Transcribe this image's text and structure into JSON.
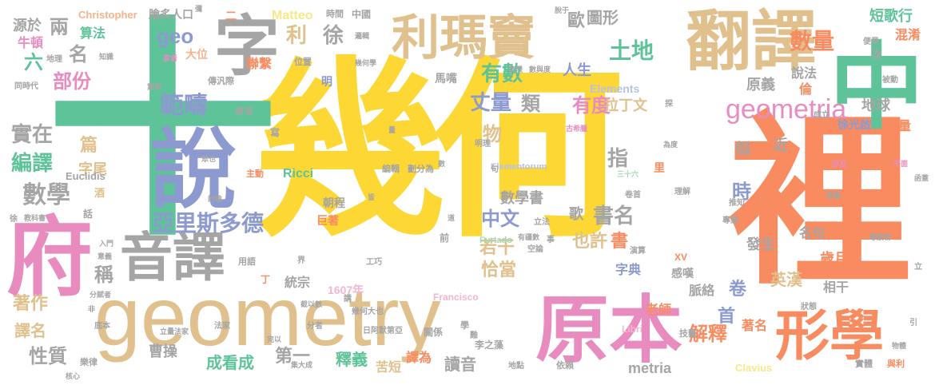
{
  "palette": {
    "yellow": "#fdd835",
    "green": "#5fc39a",
    "orange": "#f98b60",
    "tan": "#e0c08c",
    "pink": "#e88cc0",
    "blue": "#8c9ad0",
    "gray": "#a5a5a5",
    "lightyellow": "#f7e98a",
    "lightpink": "#f1b6d0",
    "lightblue": "#b7c2e3",
    "lightgreen": "#a5d8b5",
    "lightorange": "#f4b38b"
  },
  "words": [
    {
      "text": "幾何",
      "color": "yellow"
    },
    {
      "text": "十",
      "color": "green"
    },
    {
      "text": "裡",
      "color": "orange"
    },
    {
      "text": "geometry",
      "color": "tan"
    },
    {
      "text": "中",
      "color": "green"
    },
    {
      "text": "說",
      "color": "blue"
    },
    {
      "text": "府",
      "color": "pink"
    },
    {
      "text": "原本",
      "color": "pink"
    },
    {
      "text": "字",
      "color": "gray"
    },
    {
      "text": "利瑪竇",
      "color": "tan"
    },
    {
      "text": "翻譯",
      "color": "tan"
    },
    {
      "text": "音譯",
      "color": "gray"
    },
    {
      "text": "形學",
      "color": "orange"
    },
    {
      "text": "geometria",
      "color": "pink"
    },
    {
      "text": "亞里斯多德",
      "color": "blue"
    },
    {
      "text": "數學",
      "color": "gray"
    },
    {
      "text": "範疇",
      "color": "blue"
    },
    {
      "text": "數量",
      "color": "orange"
    },
    {
      "text": "有數",
      "color": "green"
    },
    {
      "text": "土地",
      "color": "green"
    },
    {
      "text": "丈量",
      "color": "blue"
    },
    {
      "text": "有度",
      "color": "pink"
    },
    {
      "text": "書名",
      "color": "gray"
    },
    {
      "text": "中文",
      "color": "blue"
    },
    {
      "text": "部份",
      "color": "pink"
    },
    {
      "text": "實在",
      "color": "gray"
    },
    {
      "text": "編譯",
      "color": "green"
    },
    {
      "text": "geo",
      "color": "blue"
    },
    {
      "text": "利",
      "color": "tan"
    },
    {
      "text": "徐",
      "color": "gray"
    },
    {
      "text": "名",
      "color": "gray"
    },
    {
      "text": "兩",
      "color": "gray"
    },
    {
      "text": "六",
      "color": "green"
    },
    {
      "text": "人生",
      "color": "blue"
    },
    {
      "text": "拉丁文",
      "color": "tan"
    },
    {
      "text": "類",
      "color": "gray"
    },
    {
      "text": "物",
      "color": "tan"
    },
    {
      "text": "指",
      "color": "gray"
    },
    {
      "text": "時",
      "color": "blue"
    },
    {
      "text": "若干",
      "color": "tan"
    },
    {
      "text": "恰當",
      "color": "tan"
    },
    {
      "text": "也許",
      "color": "tan"
    },
    {
      "text": "書",
      "color": "orange"
    },
    {
      "text": "數學書",
      "color": "gray"
    },
    {
      "text": "字典",
      "color": "blue"
    },
    {
      "text": "首",
      "color": "blue"
    },
    {
      "text": "解釋",
      "color": "orange"
    },
    {
      "text": "卷",
      "color": "blue"
    },
    {
      "text": "著作",
      "color": "tan"
    },
    {
      "text": "譯名",
      "color": "tan"
    },
    {
      "text": "性質",
      "color": "gray"
    },
    {
      "text": "稱",
      "color": "gray"
    },
    {
      "text": "篇",
      "color": "tan"
    },
    {
      "text": "字尾",
      "color": "tan"
    },
    {
      "text": "曹操",
      "color": "gray"
    },
    {
      "text": "成看成",
      "color": "green"
    },
    {
      "text": "第一",
      "color": "gray"
    },
    {
      "text": "釋義",
      "color": "green"
    },
    {
      "text": "苦短",
      "color": "tan"
    },
    {
      "text": "譯為",
      "color": "orange"
    },
    {
      "text": "讀音",
      "color": "gray"
    },
    {
      "text": "metria",
      "color": "gray"
    },
    {
      "text": "著名",
      "color": "orange"
    },
    {
      "text": "歲月",
      "color": "orange"
    },
    {
      "text": "發生",
      "color": "gray"
    },
    {
      "text": "英漢",
      "color": "tan"
    },
    {
      "text": "相干",
      "color": "gray"
    },
    {
      "text": "脈絡",
      "color": "gray"
    },
    {
      "text": "老師",
      "color": "orange"
    },
    {
      "text": "感嘆",
      "color": "gray"
    },
    {
      "text": "名句",
      "color": "gray"
    },
    {
      "text": "歌",
      "color": "gray"
    },
    {
      "text": "似",
      "color": "gray"
    },
    {
      "text": "近",
      "color": "gray"
    },
    {
      "text": "地球",
      "color": "gray"
    },
    {
      "text": "度量",
      "color": "orange"
    },
    {
      "text": "徐光啟",
      "color": "blue"
    },
    {
      "text": "倫",
      "color": "orange"
    },
    {
      "text": "原義",
      "color": "gray"
    },
    {
      "text": "說法",
      "color": "gray"
    },
    {
      "text": "短歌行",
      "color": "green"
    },
    {
      "text": "混淆",
      "color": "orange"
    },
    {
      "text": "歐",
      "color": "gray"
    },
    {
      "text": "圖形",
      "color": "gray"
    },
    {
      "text": "Elements",
      "color": "lightblue"
    },
    {
      "text": "源於",
      "color": "gray"
    },
    {
      "text": "牛頓",
      "color": "pink"
    },
    {
      "text": "算法",
      "color": "green"
    },
    {
      "text": "大位",
      "color": "lightorange"
    },
    {
      "text": "聯繫",
      "color": "orange"
    },
    {
      "text": "明",
      "color": "blue"
    },
    {
      "text": "馬嘴",
      "color": "gray"
    },
    {
      "text": "Ricci",
      "color": "green"
    },
    {
      "text": "朝程",
      "color": "gray"
    },
    {
      "text": "巨著",
      "color": "orange"
    },
    {
      "text": "1607年",
      "color": "lightpink"
    },
    {
      "text": "統宗",
      "color": "gray"
    },
    {
      "text": "Matteo",
      "color": "lightyellow"
    },
    {
      "text": "Christopher",
      "color": "lightorange"
    },
    {
      "text": "膾炙人口",
      "color": "gray"
    },
    {
      "text": "中國",
      "color": "gray"
    },
    {
      "text": "Euclidis",
      "color": "gray"
    },
    {
      "text": "Elementorum",
      "color": "lightblue"
    },
    {
      "text": "Francisco",
      "color": "lightpink"
    },
    {
      "text": "Furtado",
      "color": "lightgreen"
    },
    {
      "text": "Clavius",
      "color": "lightyellow"
    },
    {
      "text": "Libri",
      "color": "lightpink"
    },
    {
      "text": "XV",
      "color": "orange"
    },
    {
      "text": "地理",
      "color": "gray"
    },
    {
      "text": "同時代",
      "color": "gray"
    },
    {
      "text": "傳汎際",
      "color": "gray"
    },
    {
      "text": "事項",
      "color": "gray"
    },
    {
      "text": "寫",
      "color": "gray"
    },
    {
      "text": "酒",
      "color": "tan"
    },
    {
      "text": "話",
      "color": "gray"
    },
    {
      "text": "丁",
      "color": "orange"
    },
    {
      "text": "日阿默第亞",
      "color": "gray"
    },
    {
      "text": "李之藻",
      "color": "gray"
    },
    {
      "text": "關係",
      "color": "gray"
    },
    {
      "text": "依賴",
      "color": "gray"
    },
    {
      "text": "實體",
      "color": "gray"
    },
    {
      "text": "與利",
      "color": "orange"
    },
    {
      "text": "里",
      "color": "orange"
    },
    {
      "text": "次",
      "color": "gray"
    },
    {
      "text": "便是",
      "color": "gray"
    },
    {
      "text": "被動",
      "color": "gray"
    },
    {
      "text": "成立",
      "color": "gray"
    },
    {
      "text": "推知",
      "color": "gray"
    },
    {
      "text": "專業",
      "color": "gray"
    },
    {
      "text": "理解",
      "color": "gray"
    },
    {
      "text": "卷首",
      "color": "gray"
    },
    {
      "text": "三十六",
      "color": "lightgreen"
    },
    {
      "text": "編輯",
      "color": "gray"
    },
    {
      "text": "劃分為",
      "color": "gray"
    },
    {
      "text": "明理",
      "color": "gray"
    },
    {
      "text": "句",
      "color": "gray"
    },
    {
      "text": "立法",
      "color": "gray"
    },
    {
      "text": "空論",
      "color": "gray"
    },
    {
      "text": "演算",
      "color": "gray"
    },
    {
      "text": "狀態",
      "color": "gray"
    },
    {
      "text": "技藝",
      "color": "gray"
    },
    {
      "text": "地點",
      "color": "gray"
    },
    {
      "text": "分者",
      "color": "gray"
    },
    {
      "text": "法家",
      "color": "gray"
    },
    {
      "text": "立量法家",
      "color": "gray"
    },
    {
      "text": "樂律",
      "color": "gray"
    },
    {
      "text": "核心",
      "color": "gray"
    },
    {
      "text": "底本",
      "color": "gray"
    },
    {
      "text": "入門",
      "color": "gray"
    },
    {
      "text": "意義",
      "color": "gray"
    },
    {
      "text": "工巧",
      "color": "gray"
    },
    {
      "text": "用語",
      "color": "gray"
    },
    {
      "text": "截以數",
      "color": "gray"
    },
    {
      "text": "幾何大也",
      "color": "gray"
    },
    {
      "text": "主動",
      "color": "orange"
    },
    {
      "text": "知識",
      "color": "gray"
    },
    {
      "text": "家者",
      "color": "pink"
    },
    {
      "text": "算章",
      "color": "gray"
    },
    {
      "text": "位置",
      "color": "gray"
    },
    {
      "text": "幾何學",
      "color": "gray"
    },
    {
      "text": "邏輯",
      "color": "gray"
    },
    {
      "text": "時間",
      "color": "gray"
    },
    {
      "text": "脫于",
      "color": "gray"
    },
    {
      "text": "數與度",
      "color": "gray"
    },
    {
      "text": "有限",
      "color": "gray"
    },
    {
      "text": "古希臘",
      "color": "pink"
    },
    {
      "text": "為度",
      "color": "gray"
    },
    {
      "text": "涉及",
      "color": "pink"
    },
    {
      "text": "平面",
      "color": "pink"
    },
    {
      "text": "原書",
      "color": "gray"
    },
    {
      "text": "函蓋",
      "color": "gray"
    },
    {
      "text": "專察物",
      "color": "gray"
    },
    {
      "text": "物體",
      "color": "gray"
    },
    {
      "text": "教科書",
      "color": "gray"
    },
    {
      "text": "分賦者",
      "color": "gray"
    },
    {
      "text": "完以",
      "color": "gray"
    },
    {
      "text": "量",
      "color": "gray"
    },
    {
      "text": "數",
      "color": "gray"
    },
    {
      "text": "有疆數",
      "color": "gray"
    },
    {
      "text": "眾也",
      "color": "gray"
    },
    {
      "text": "討論",
      "color": "gray"
    },
    {
      "text": "皆",
      "color": "gray"
    },
    {
      "text": "前",
      "color": "gray"
    },
    {
      "text": "學",
      "color": "gray"
    },
    {
      "text": "難",
      "color": "gray"
    },
    {
      "text": "界",
      "color": "gray"
    },
    {
      "text": "講",
      "color": "gray"
    },
    {
      "text": "事",
      "color": "gray"
    },
    {
      "text": "引",
      "color": "gray"
    },
    {
      "text": "立",
      "color": "gray"
    },
    {
      "text": "徐",
      "color": "gray"
    },
    {
      "text": "二",
      "color": "orange"
    },
    {
      "text": "探",
      "color": "gray"
    },
    {
      "text": "非",
      "color": "gray"
    },
    {
      "text": "集大成",
      "color": "gray"
    },
    {
      "text": "彌",
      "color": "gray"
    },
    {
      "text": "道",
      "color": "gray"
    }
  ]
}
